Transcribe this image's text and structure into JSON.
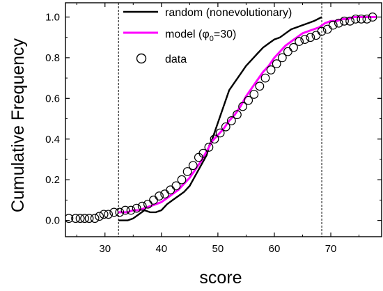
{
  "chart_data": {
    "type": "line",
    "title": "",
    "xlabel": "score",
    "ylabel": "Cumulative Frequency",
    "xlim": [
      23,
      79
    ],
    "ylim": [
      -0.08,
      1.07
    ],
    "xticks": [
      30,
      40,
      50,
      60,
      70
    ],
    "yticks": [
      0.0,
      0.2,
      0.4,
      0.6,
      0.8,
      1.0
    ],
    "xtick_labels": [
      "30",
      "40",
      "50",
      "60",
      "70"
    ],
    "ytick_labels": [
      "0.0",
      "0.2",
      "0.4",
      "0.6",
      "0.8",
      "1.0"
    ],
    "grid": false,
    "legend_position": "top-center",
    "reference_lines_x": [
      32.4,
      68.4
    ],
    "series": [
      {
        "name": "random (nonevolutionary)",
        "kind": "line",
        "color": "#000000",
        "x": [
          32.4,
          34,
          35,
          36,
          37,
          38,
          39,
          40,
          41,
          42,
          43,
          44,
          45,
          46,
          47,
          48,
          48.5,
          49,
          50,
          51,
          52,
          53,
          54,
          55,
          56,
          57,
          58,
          59,
          60,
          61,
          62,
          63,
          64,
          65,
          66,
          67,
          68.4
        ],
        "y": [
          0.0,
          0.0,
          0.01,
          0.03,
          0.05,
          0.04,
          0.04,
          0.05,
          0.08,
          0.1,
          0.12,
          0.14,
          0.17,
          0.22,
          0.27,
          0.32,
          0.37,
          0.4,
          0.48,
          0.56,
          0.64,
          0.68,
          0.72,
          0.76,
          0.79,
          0.82,
          0.85,
          0.87,
          0.89,
          0.9,
          0.92,
          0.94,
          0.95,
          0.96,
          0.97,
          0.98,
          1.0
        ]
      },
      {
        "name": "model (φ0=30)",
        "legend_label_main": "model (φ",
        "legend_label_sub": "0",
        "legend_label_end": "=30)",
        "kind": "line",
        "color": "#ff00ff",
        "x": [
          32.4,
          33,
          34,
          35,
          36,
          37,
          38,
          39,
          40,
          41,
          42,
          43,
          44,
          45,
          46,
          47,
          48,
          49,
          50,
          51,
          52,
          53,
          54,
          55,
          56,
          57,
          58,
          59,
          60,
          61,
          62,
          63,
          64,
          65,
          66,
          67,
          68,
          69,
          70,
          71,
          72,
          73,
          74,
          75,
          76,
          77,
          78
        ],
        "y": [
          0.04,
          0.04,
          0.04,
          0.05,
          0.05,
          0.06,
          0.07,
          0.08,
          0.09,
          0.11,
          0.13,
          0.15,
          0.18,
          0.21,
          0.25,
          0.29,
          0.34,
          0.39,
          0.42,
          0.45,
          0.49,
          0.52,
          0.56,
          0.61,
          0.65,
          0.69,
          0.73,
          0.76,
          0.8,
          0.83,
          0.86,
          0.88,
          0.9,
          0.92,
          0.93,
          0.94,
          0.95,
          0.97,
          0.98,
          0.98,
          0.99,
          0.99,
          1.0,
          1.0,
          1.0,
          1.0,
          1.0
        ]
      },
      {
        "name": "data",
        "kind": "scatter",
        "marker": "open-circle",
        "color": "#000000",
        "x": [
          23.6,
          24.8,
          25.6,
          26.4,
          27.2,
          28.2,
          29.0,
          29.8,
          30.6,
          31.6,
          32.6,
          33.6,
          34.6,
          35.6,
          36.6,
          37.6,
          38.6,
          39.6,
          40.6,
          41.6,
          42.6,
          43.6,
          44.6,
          45.6,
          46.6,
          47.4,
          48.4,
          49.4,
          50.4,
          51.4,
          52.4,
          53.4,
          54.4,
          55.4,
          56.4,
          57.4,
          58.4,
          59.4,
          60.4,
          61.4,
          62.4,
          63.4,
          64.4,
          65.4,
          66.4,
          67.4,
          68.4,
          69.4,
          70.4,
          71.4,
          72.4,
          73.4,
          74.4,
          75.4,
          76.4,
          77.4
        ],
        "y": [
          0.01,
          0.01,
          0.01,
          0.01,
          0.01,
          0.01,
          0.02,
          0.03,
          0.03,
          0.04,
          0.04,
          0.05,
          0.05,
          0.06,
          0.07,
          0.08,
          0.1,
          0.12,
          0.13,
          0.15,
          0.17,
          0.2,
          0.24,
          0.27,
          0.31,
          0.33,
          0.36,
          0.4,
          0.43,
          0.46,
          0.49,
          0.52,
          0.56,
          0.59,
          0.62,
          0.66,
          0.7,
          0.74,
          0.77,
          0.8,
          0.83,
          0.85,
          0.88,
          0.89,
          0.9,
          0.91,
          0.93,
          0.94,
          0.96,
          0.97,
          0.98,
          0.98,
          0.99,
          0.99,
          0.99,
          1.0
        ]
      }
    ]
  }
}
